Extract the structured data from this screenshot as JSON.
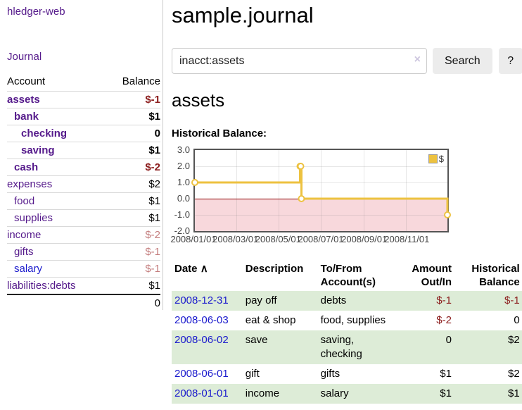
{
  "app": {
    "brand": "hledger-web"
  },
  "sidebar": {
    "journal_link": "Journal",
    "accounts": {
      "header_account": "Account",
      "header_balance": "Balance",
      "rows": [
        {
          "name": "assets",
          "balance": "$-1"
        },
        {
          "name": "bank",
          "balance": "$1"
        },
        {
          "name": "checking",
          "balance": "0"
        },
        {
          "name": "saving",
          "balance": "$1"
        },
        {
          "name": "cash",
          "balance": "$-2"
        },
        {
          "name": "expenses",
          "balance": "$2"
        },
        {
          "name": "food",
          "balance": "$1"
        },
        {
          "name": "supplies",
          "balance": "$1"
        },
        {
          "name": "income",
          "balance": "$-2"
        },
        {
          "name": "gifts",
          "balance": "$-1"
        },
        {
          "name": "salary",
          "balance": "$-1"
        },
        {
          "name": "liabilities:debts",
          "balance": "$1"
        }
      ],
      "total": "0"
    }
  },
  "main": {
    "title": "sample.journal",
    "search": {
      "value": "inacct:assets",
      "clear_icon": "×",
      "search_button": "Search",
      "help_button": "?"
    },
    "account_heading": "assets",
    "chart_title": "Historical Balance:"
  },
  "chart_data": {
    "type": "line",
    "step": true,
    "title": "Historical Balance",
    "series": [
      {
        "name": "$",
        "color": "#EDC240",
        "points": [
          [
            "2008-01-01",
            1
          ],
          [
            "2008-06-01",
            2
          ],
          [
            "2008-06-02",
            2
          ],
          [
            "2008-06-03",
            0
          ],
          [
            "2008-12-31",
            -1
          ]
        ]
      }
    ],
    "x_range": [
      "2008/01/01",
      "2008/12/31"
    ],
    "x_ticks": [
      "2008/01/01",
      "2008/03/01",
      "2008/05/01",
      "2008/07/01",
      "2008/09/01",
      "2008/11/01"
    ],
    "y_ticks": [
      "3.0",
      "2.0",
      "1.0",
      "0.0",
      "-1.0",
      "-2.0"
    ],
    "ylim": [
      -2,
      3
    ],
    "grid": true,
    "legend_position": "top-right",
    "negative_region_color": "#f8d8dc",
    "zero_line_color": "#8b0000"
  },
  "register": {
    "headers": {
      "date": "Date",
      "description": "Description",
      "account": "To/From Account(s)",
      "amount": "Amount Out/In",
      "balance": "Historical Balance"
    },
    "sort_icon": "∧",
    "rows": [
      {
        "date": "2008-12-31",
        "description": "pay off",
        "account": "debts",
        "amount": "$-1",
        "balance": "$-1"
      },
      {
        "date": "2008-06-03",
        "description": "eat & shop",
        "account": "food, supplies",
        "amount": "$-2",
        "balance": "0"
      },
      {
        "date": "2008-06-02",
        "description": "save",
        "account": "saving, checking",
        "amount": "0",
        "balance": "$2"
      },
      {
        "date": "2008-06-01",
        "description": "gift",
        "account": "gifts",
        "amount": "$1",
        "balance": "$2"
      },
      {
        "date": "2008-01-01",
        "description": "income",
        "account": "salary",
        "amount": "$1",
        "balance": "$1"
      }
    ]
  }
}
